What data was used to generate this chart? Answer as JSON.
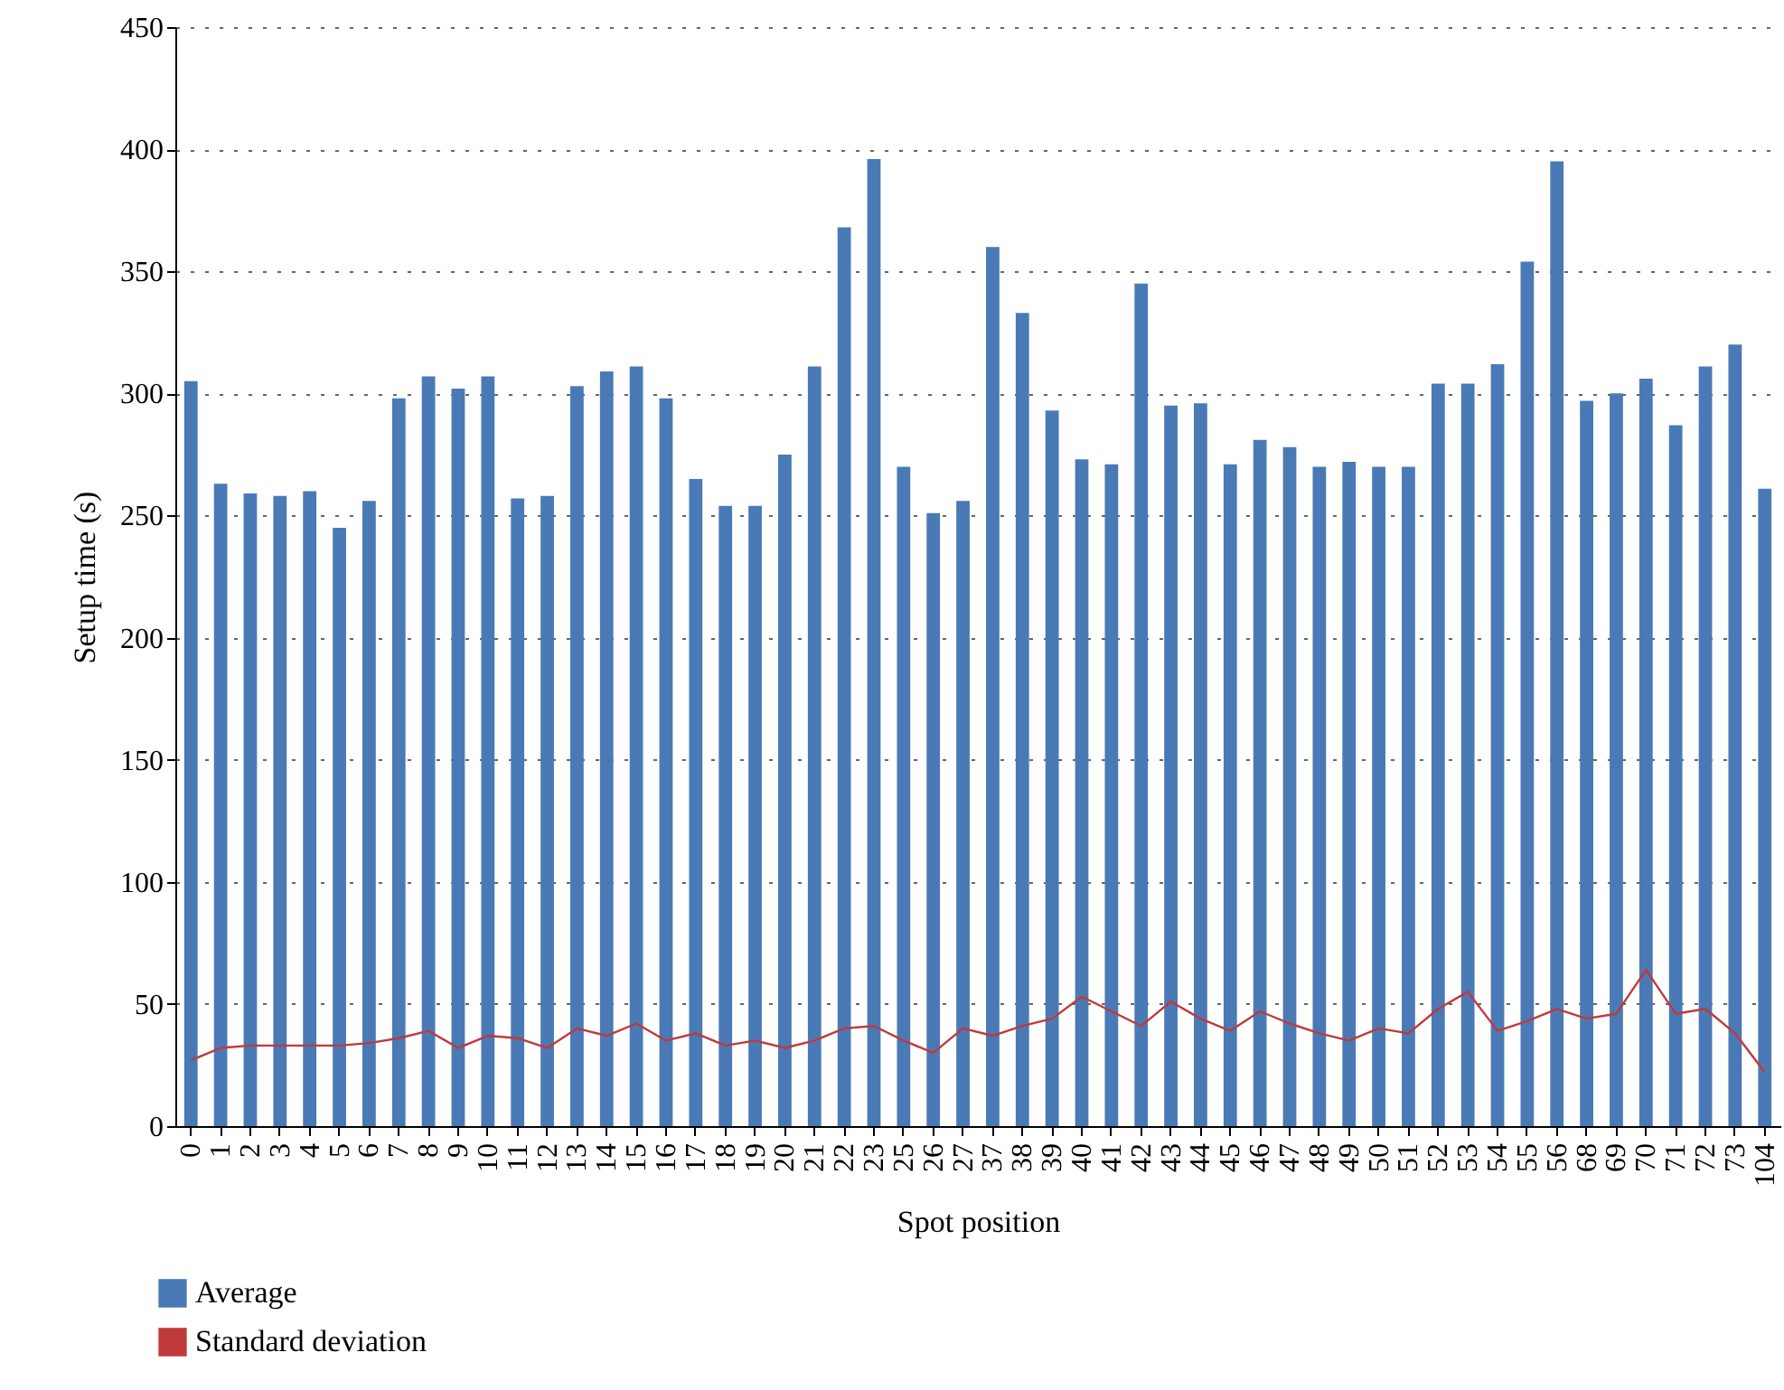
{
  "chart_data": {
    "type": "bar",
    "xlabel": "Spot position",
    "ylabel": "Setup time (s)",
    "categories": [
      "0",
      "1",
      "2",
      "3",
      "4",
      "5",
      "6",
      "7",
      "8",
      "9",
      "10",
      "11",
      "12",
      "13",
      "14",
      "15",
      "16",
      "17",
      "18",
      "19",
      "20",
      "21",
      "22",
      "23",
      "25",
      "26",
      "27",
      "37",
      "38",
      "39",
      "40",
      "41",
      "42",
      "43",
      "44",
      "45",
      "46",
      "47",
      "48",
      "49",
      "50",
      "51",
      "52",
      "53",
      "54",
      "55",
      "56",
      "68",
      "69",
      "70",
      "71",
      "72",
      "73",
      "104"
    ],
    "series": [
      {
        "name": "Average",
        "color": "#4a7ab5",
        "values": [
          305,
          263,
          259,
          258,
          260,
          245,
          256,
          298,
          307,
          302,
          307,
          257,
          258,
          303,
          309,
          311,
          298,
          265,
          254,
          254,
          275,
          311,
          368,
          396,
          270,
          251,
          256,
          360,
          333,
          293,
          273,
          271,
          345,
          295,
          296,
          271,
          281,
          278,
          270,
          272,
          270,
          270,
          304,
          304,
          312,
          354,
          395,
          297,
          300,
          306,
          287,
          311,
          320,
          261
        ]
      },
      {
        "name": "Standard deviation",
        "type": "line",
        "color": "#c0393b",
        "values": [
          27,
          32,
          33,
          33,
          33,
          33,
          34,
          36,
          39,
          32,
          37,
          36,
          32,
          40,
          37,
          42,
          35,
          38,
          33,
          35,
          32,
          35,
          40,
          41,
          35,
          30,
          40,
          37,
          41,
          44,
          53,
          47,
          41,
          51,
          44,
          39,
          47,
          42,
          38,
          35,
          40,
          38,
          48,
          55,
          39,
          43,
          48,
          44,
          46,
          64,
          46,
          48,
          38,
          22
        ]
      }
    ],
    "ylim": [
      0,
      450
    ],
    "yticks": [
      0,
      50,
      100,
      150,
      200,
      250,
      300,
      350,
      400,
      450
    ],
    "grid": "y",
    "legend": "bottom left"
  }
}
